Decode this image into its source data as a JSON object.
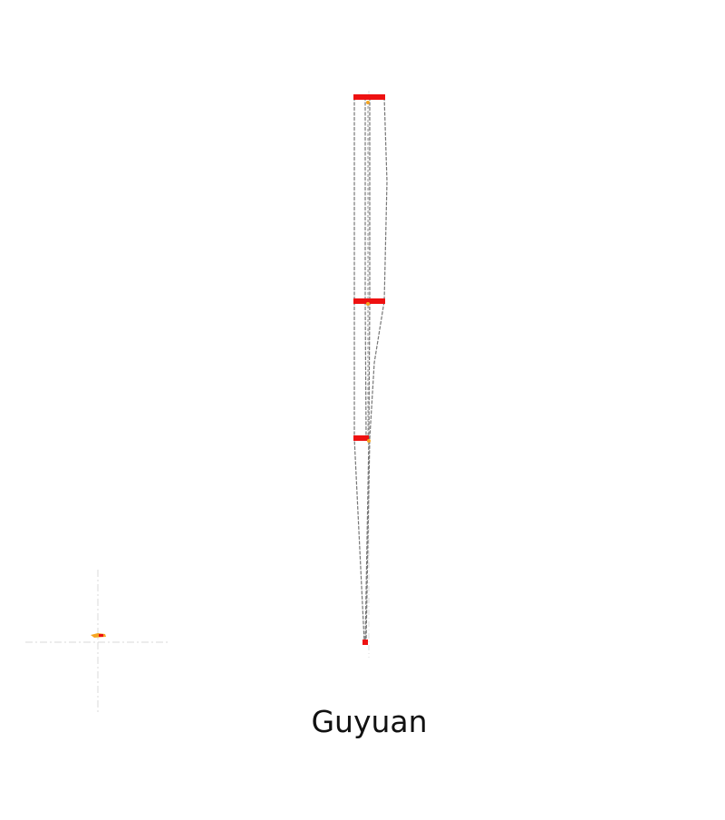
{
  "title": "Guyuan",
  "colors": {
    "background": "#ffffff",
    "bar": "#ee1111",
    "outline": "#777777",
    "axis": "#d8d8d8",
    "marker": "#f5a623",
    "title_text": "#111111"
  },
  "icons": {
    "legend_marker": "small-map-marker-icon"
  }
}
